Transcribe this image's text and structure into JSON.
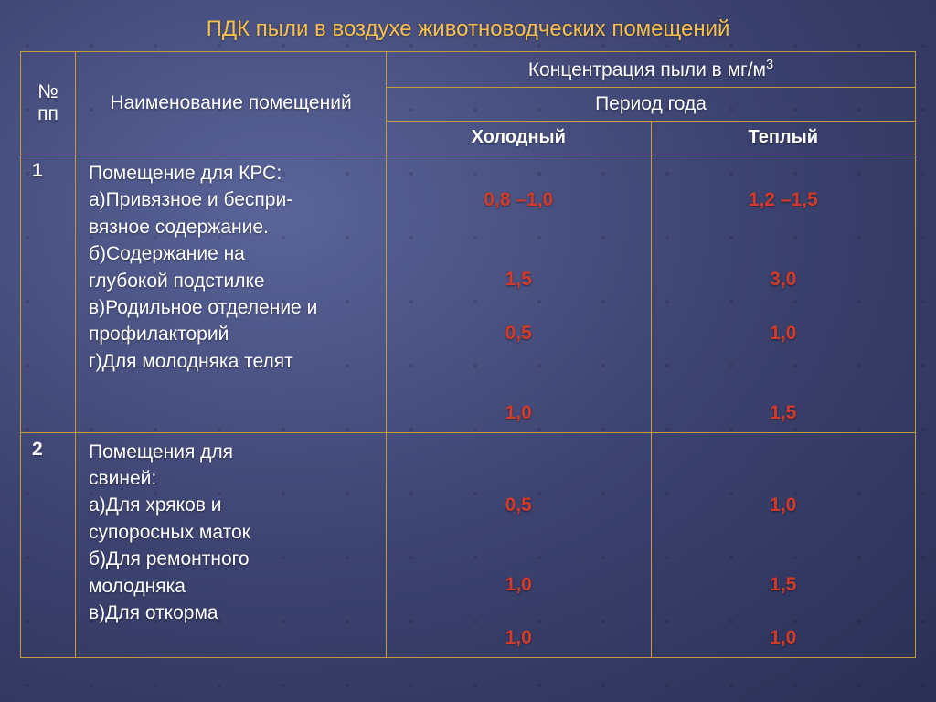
{
  "title": "ПДК пыли в воздухе животноводческих помещений",
  "colors": {
    "title": "#f6c04b",
    "border": "#c89b3a",
    "text": "#ffffff",
    "value": "#d43a2a",
    "bg_from": "#5a6499",
    "bg_to": "#2a2f55"
  },
  "header": {
    "num": "№ пп",
    "name": "Наименование помещений",
    "conc_html": "Концентрация пыли в мг/м",
    "conc_sup": "3",
    "period": "Период года",
    "cold": "Холодный",
    "warm": "Теплый"
  },
  "rows": [
    {
      "num": "1",
      "head": "Помещение для КРС:",
      "items": [
        "а)Привязное и беспри-",
        "вязное содержание.",
        "б)Содержание на",
        "глубокой подстилке",
        "в)Родильное отделение и",
        "профилакторий",
        "г)Для молодняка телят"
      ],
      "cold": [
        "0,8 –1,0",
        "1,5",
        "0,5",
        "1,0"
      ],
      "warm": [
        "1,2 –1,5",
        "3,0",
        "1,0",
        "1,5"
      ]
    },
    {
      "num": "2",
      "head": "Помещения для",
      "head2": "свиней:",
      "items": [
        "а)Для хряков и",
        "супоросных маток",
        "б)Для ремонтного",
        "молодняка",
        "в)Для откорма"
      ],
      "cold": [
        "0,5",
        "1,0",
        "1,0"
      ],
      "warm": [
        "1,0",
        "1,5",
        "1,0"
      ]
    }
  ]
}
